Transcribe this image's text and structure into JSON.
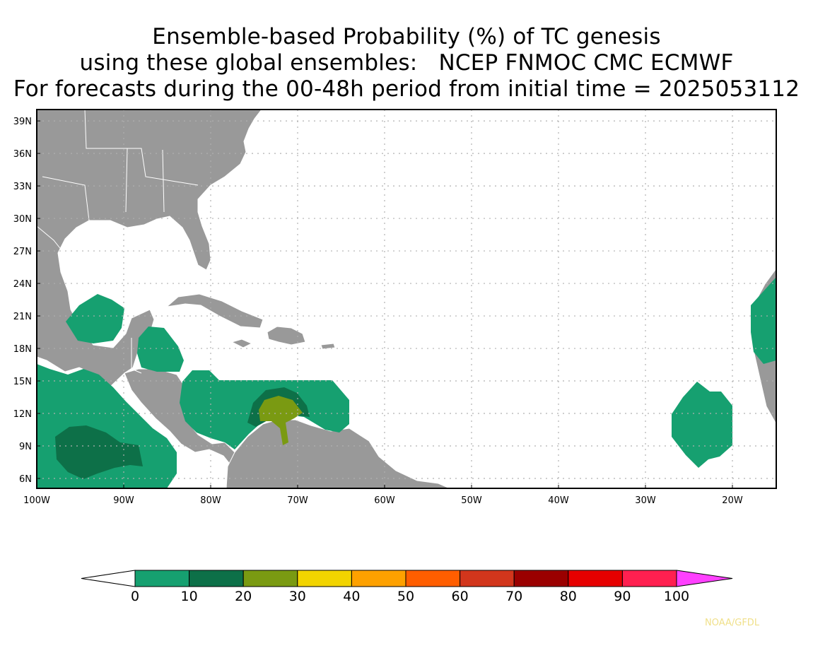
{
  "title": {
    "line1": "Ensemble-based Probability (%) of TC genesis",
    "line2": "using these global ensembles:   NCEP FNMOC CMC ECMWF",
    "line3": "For forecasts during the 00-48h period from initial time = 2025053112"
  },
  "map": {
    "lat_labels": [
      "39N",
      "36N",
      "33N",
      "30N",
      "27N",
      "24N",
      "21N",
      "18N",
      "15N",
      "12N",
      "9N",
      "6N"
    ],
    "lon_labels": [
      "100W",
      "90W",
      "80W",
      "70W",
      "60W",
      "50W",
      "40W",
      "30W",
      "20W"
    ],
    "land_color": "#999999",
    "ocean_color": "#ffffff"
  },
  "colorbar": {
    "tick_labels": [
      "0",
      "10",
      "20",
      "30",
      "40",
      "50",
      "60",
      "70",
      "80",
      "90",
      "100"
    ],
    "bin_colors": [
      "#16a070",
      "#0d7048",
      "#7a9a12",
      "#f2d400",
      "#fea100",
      "#ff5e00",
      "#d2361c",
      "#9a0000",
      "#e60000",
      "#ff2050"
    ],
    "under_color": "#ffffff",
    "over_color": "#ff40ff"
  },
  "credit": "NOAA/GFDL"
}
